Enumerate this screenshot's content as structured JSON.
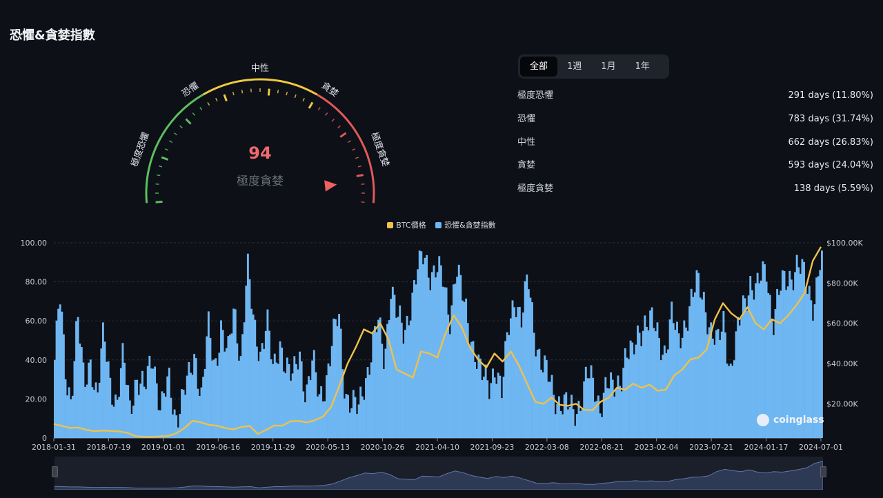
{
  "header": {
    "title": "恐懼&貪婪指數"
  },
  "gauge": {
    "value": "94",
    "value_num": 94,
    "label": "極度貪婪",
    "zones": [
      "極度恐懼",
      "恐懼",
      "中性",
      "貪婪",
      "極度貪婪"
    ],
    "colors": {
      "fear": "#5dbf5f",
      "neutral": "#f0c93f",
      "greed": "#e15a5a"
    }
  },
  "tabs": [
    {
      "label": "全部",
      "active": true
    },
    {
      "label": "1週",
      "active": false
    },
    {
      "label": "1月",
      "active": false
    },
    {
      "label": "1年",
      "active": false
    }
  ],
  "stats": [
    {
      "label": "極度恐懼",
      "value": "291 days (11.80%)"
    },
    {
      "label": "恐懼",
      "value": "783 days (31.74%)"
    },
    {
      "label": "中性",
      "value": "662 days (26.83%)"
    },
    {
      "label": "貪婪",
      "value": "593 days (24.04%)"
    },
    {
      "label": "極度貪婪",
      "value": "138 days (5.59%)"
    }
  ],
  "watermark": "coinglass",
  "chart_data": {
    "type": "bar",
    "legend": [
      {
        "name": "BTC價格",
        "color": "#f0c14b"
      },
      {
        "name": "恐懼&貪婪指數",
        "color": "#6fb7f2"
      }
    ],
    "legend_position": "top-center",
    "x_ticks": [
      "2018-01-31",
      "2018-07-19",
      "2019-01-01",
      "2019-06-16",
      "2019-11-29",
      "2020-05-13",
      "2020-10-26",
      "2021-04-10",
      "2021-09-23",
      "2022-03-08",
      "2022-08-21",
      "2023-02-04",
      "2023-07-21",
      "2024-01-17",
      "2024-07-01"
    ],
    "y_left": {
      "ticks": [
        "0",
        "20.00",
        "40.00",
        "60.00",
        "80.00",
        "100.00"
      ],
      "range": [
        0,
        100
      ]
    },
    "y_right": {
      "ticks": [
        "$20.00K",
        "$40.00K",
        "$60.00K",
        "$80.00K",
        "$100.00K"
      ],
      "range": [
        3000,
        100000
      ]
    },
    "grid": true,
    "series": [
      {
        "name": "恐懼&貪婪指數",
        "type": "bar",
        "points": [
          [
            0,
            40
          ],
          [
            0.3,
            72
          ],
          [
            0.7,
            30
          ],
          [
            1,
            22
          ],
          [
            1.4,
            62
          ],
          [
            1.8,
            25
          ],
          [
            2.2,
            42
          ],
          [
            2.6,
            20
          ],
          [
            3,
            52
          ],
          [
            3.4,
            30
          ],
          [
            3.8,
            18
          ],
          [
            4.2,
            40
          ],
          [
            4.6,
            16
          ],
          [
            5,
            32
          ],
          [
            5.5,
            22
          ],
          [
            6,
            45
          ],
          [
            6.5,
            14
          ],
          [
            7,
            28
          ],
          [
            7.4,
            12
          ],
          [
            7.8,
            20
          ],
          [
            8.2,
            28
          ],
          [
            8.6,
            44
          ],
          [
            9,
            22
          ],
          [
            9.4,
            55
          ],
          [
            9.8,
            35
          ],
          [
            10.2,
            60
          ],
          [
            10.6,
            40
          ],
          [
            11,
            65
          ],
          [
            11.4,
            42
          ],
          [
            11.8,
            88
          ],
          [
            12.2,
            55
          ],
          [
            12.6,
            45
          ],
          [
            13,
            62
          ],
          [
            13.4,
            30
          ],
          [
            13.8,
            50
          ],
          [
            14.2,
            38
          ],
          [
            14.6,
            28
          ],
          [
            15,
            44
          ],
          [
            15.4,
            24
          ],
          [
            15.8,
            38
          ],
          [
            16.2,
            20
          ],
          [
            16.6,
            30
          ],
          [
            17,
            48
          ],
          [
            17.4,
            62
          ],
          [
            17.8,
            25
          ],
          [
            18.2,
            18
          ],
          [
            18.6,
            12
          ],
          [
            19,
            30
          ],
          [
            19.4,
            45
          ],
          [
            19.8,
            58
          ],
          [
            20.2,
            40
          ],
          [
            20.6,
            80
          ],
          [
            21,
            60
          ],
          [
            21.4,
            52
          ],
          [
            21.8,
            70
          ],
          [
            22.2,
            85
          ],
          [
            22.6,
            92
          ],
          [
            23,
            86
          ],
          [
            23.4,
            88
          ],
          [
            23.8,
            78
          ],
          [
            24.2,
            62
          ],
          [
            24.6,
            90
          ],
          [
            25,
            70
          ],
          [
            25.4,
            55
          ],
          [
            25.8,
            45
          ],
          [
            26.2,
            30
          ],
          [
            26.6,
            25
          ],
          [
            27,
            40
          ],
          [
            27.4,
            22
          ],
          [
            27.8,
            55
          ],
          [
            28.2,
            75
          ],
          [
            28.6,
            60
          ],
          [
            29,
            80
          ],
          [
            29.4,
            55
          ],
          [
            29.8,
            40
          ],
          [
            30.2,
            30
          ],
          [
            30.6,
            22
          ],
          [
            31,
            20
          ],
          [
            31.4,
            15
          ],
          [
            31.8,
            12
          ],
          [
            32.2,
            20
          ],
          [
            32.6,
            32
          ],
          [
            33,
            25
          ],
          [
            33.4,
            18
          ],
          [
            33.8,
            28
          ],
          [
            34.2,
            22
          ],
          [
            34.6,
            30
          ],
          [
            35,
            45
          ],
          [
            35.4,
            40
          ],
          [
            35.8,
            55
          ],
          [
            36.2,
            62
          ],
          [
            36.6,
            58
          ],
          [
            37,
            50
          ],
          [
            37.4,
            46
          ],
          [
            37.8,
            62
          ],
          [
            38.2,
            48
          ],
          [
            38.6,
            60
          ],
          [
            39,
            70
          ],
          [
            39.4,
            78
          ],
          [
            39.8,
            72
          ],
          [
            40.2,
            55
          ],
          [
            40.6,
            45
          ],
          [
            41,
            62
          ],
          [
            41.4,
            35
          ],
          [
            41.8,
            50
          ],
          [
            42.2,
            68
          ],
          [
            42.6,
            82
          ],
          [
            43,
            74
          ],
          [
            43.6,
            88
          ],
          [
            44,
            60
          ],
          [
            44.5,
            76
          ],
          [
            45,
            84
          ],
          [
            45.5,
            88
          ],
          [
            46,
            80
          ],
          [
            46.5,
            70
          ],
          [
            47,
            94
          ]
        ]
      },
      {
        "name": "BTC價格",
        "type": "line",
        "points": [
          [
            0,
            10000
          ],
          [
            0.5,
            9000
          ],
          [
            1,
            8000
          ],
          [
            1.5,
            8200
          ],
          [
            2,
            7000
          ],
          [
            2.5,
            6400
          ],
          [
            3,
            6700
          ],
          [
            3.5,
            6500
          ],
          [
            4,
            6300
          ],
          [
            4.5,
            5600
          ],
          [
            5,
            3900
          ],
          [
            5.5,
            3600
          ],
          [
            6,
            3500
          ],
          [
            6.5,
            3800
          ],
          [
            7,
            4000
          ],
          [
            7.5,
            5300
          ],
          [
            8,
            7900
          ],
          [
            8.5,
            11500
          ],
          [
            9,
            10800
          ],
          [
            9.5,
            9500
          ],
          [
            10,
            9100
          ],
          [
            10.5,
            8000
          ],
          [
            11,
            7300
          ],
          [
            11.5,
            8500
          ],
          [
            12,
            9000
          ],
          [
            12.5,
            5000
          ],
          [
            13,
            7000
          ],
          [
            13.5,
            9200
          ],
          [
            14,
            9100
          ],
          [
            14.5,
            11300
          ],
          [
            15,
            11500
          ],
          [
            15.5,
            10700
          ],
          [
            16,
            11800
          ],
          [
            16.5,
            13700
          ],
          [
            17,
            18500
          ],
          [
            17.5,
            29000
          ],
          [
            18,
            40000
          ],
          [
            18.5,
            48000
          ],
          [
            19,
            57000
          ],
          [
            19.5,
            55000
          ],
          [
            20,
            60000
          ],
          [
            20.5,
            52000
          ],
          [
            21,
            37000
          ],
          [
            21.5,
            35000
          ],
          [
            22,
            33000
          ],
          [
            22.5,
            46000
          ],
          [
            23,
            45000
          ],
          [
            23.5,
            43000
          ],
          [
            24,
            55000
          ],
          [
            24.5,
            64000
          ],
          [
            25,
            58000
          ],
          [
            25.5,
            48000
          ],
          [
            26,
            42000
          ],
          [
            26.5,
            38000
          ],
          [
            27,
            45000
          ],
          [
            27.5,
            41000
          ],
          [
            28,
            46000
          ],
          [
            28.5,
            39000
          ],
          [
            29,
            30000
          ],
          [
            29.5,
            21000
          ],
          [
            30,
            20000
          ],
          [
            30.5,
            23000
          ],
          [
            31,
            19500
          ],
          [
            31.5,
            19000
          ],
          [
            32,
            20000
          ],
          [
            32.5,
            17000
          ],
          [
            33,
            16800
          ],
          [
            33.5,
            21000
          ],
          [
            34,
            23000
          ],
          [
            34.5,
            28000
          ],
          [
            35,
            27000
          ],
          [
            35.5,
            30000
          ],
          [
            36,
            28000
          ],
          [
            36.5,
            29500
          ],
          [
            37,
            26500
          ],
          [
            37.5,
            27000
          ],
          [
            38,
            34000
          ],
          [
            38.5,
            37000
          ],
          [
            39,
            42000
          ],
          [
            39.5,
            43000
          ],
          [
            40,
            47000
          ],
          [
            40.5,
            62000
          ],
          [
            41,
            70000
          ],
          [
            41.5,
            65000
          ],
          [
            42,
            62000
          ],
          [
            42.5,
            68000
          ],
          [
            43,
            60000
          ],
          [
            43.5,
            57000
          ],
          [
            44,
            62000
          ],
          [
            44.5,
            60000
          ],
          [
            45,
            64000
          ],
          [
            45.5,
            69000
          ],
          [
            46,
            75000
          ],
          [
            46.5,
            91000
          ],
          [
            47,
            98000
          ]
        ]
      }
    ]
  }
}
